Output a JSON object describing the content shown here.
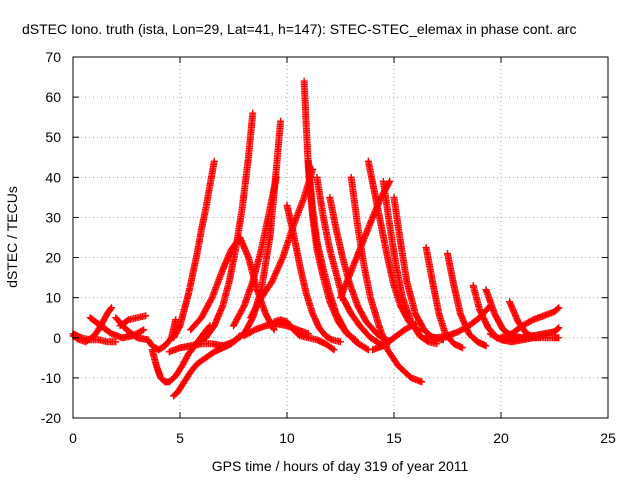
{
  "chart_data": {
    "type": "scatter",
    "title": "dSTEC Iono. truth (ista, Lon=29, Lat=41, h=147): STEC-STEC_elemax in phase cont. arc",
    "xlabel": "GPS time / hours of day 319 of year 2011",
    "ylabel": "dSTEC  / TECUs",
    "xlim": [
      0,
      25
    ],
    "ylim": [
      -20,
      70
    ],
    "xticks": [
      0,
      5,
      10,
      15,
      20,
      25
    ],
    "yticks": [
      -20,
      -10,
      0,
      10,
      20,
      30,
      40,
      50,
      60,
      70
    ],
    "grid": true,
    "marker_color": "#ff0000",
    "marker": "plus",
    "series": [
      {
        "x": [
          0.0,
          0.3,
          0.6,
          1.0,
          1.3,
          1.6,
          1.8
        ],
        "y": [
          0.5,
          -0.5,
          -1.0,
          0.5,
          3.0,
          6.0,
          7.5
        ]
      },
      {
        "x": [
          0.0,
          0.4,
          0.8,
          1.2,
          1.6,
          2.0
        ],
        "y": [
          1.0,
          0.0,
          -0.5,
          -0.5,
          -1.0,
          -1.0
        ]
      },
      {
        "x": [
          0.8,
          1.3,
          1.8,
          2.3,
          2.8,
          3.3
        ],
        "y": [
          5.0,
          3.0,
          1.0,
          0.0,
          0.5,
          2.0
        ]
      },
      {
        "x": [
          2.0,
          2.5,
          3.0,
          3.5,
          3.7,
          4.0,
          4.3,
          4.6,
          4.8
        ],
        "y": [
          5.0,
          2.0,
          0.0,
          -0.5,
          -2.0,
          -3.0,
          -2.0,
          0.0,
          4.5
        ]
      },
      {
        "x": [
          2.2,
          2.6,
          3.0,
          3.4
        ],
        "y": [
          3.0,
          4.5,
          5.0,
          5.5
        ]
      },
      {
        "x": [
          3.7,
          3.9,
          4.1,
          4.3,
          4.5,
          4.8,
          5.1,
          5.4,
          5.7,
          6.1,
          6.4
        ],
        "y": [
          -3.0,
          -7.0,
          -10.0,
          -11.0,
          -11.0,
          -9.5,
          -7.0,
          -4.0,
          -2.0,
          1.0,
          3.0
        ]
      },
      {
        "x": [
          4.7,
          5.0,
          5.2,
          5.4,
          5.6,
          5.8,
          6.0,
          6.2,
          6.4,
          6.6
        ],
        "y": [
          0.0,
          3.0,
          7.0,
          11.0,
          16.0,
          21.0,
          27.0,
          32.0,
          38.0,
          44.0
        ]
      },
      {
        "x": [
          4.7,
          4.9,
          5.2,
          5.5,
          5.8,
          6.2,
          6.6,
          7.0,
          7.4,
          7.8
        ],
        "y": [
          -14.5,
          -13.5,
          -11.0,
          -8.5,
          -6.5,
          -5.0,
          -3.5,
          -2.5,
          -1.5,
          0.5
        ]
      },
      {
        "x": [
          4.5,
          5.0,
          5.5,
          6.0,
          6.5,
          7.0
        ],
        "y": [
          -3.5,
          -2.5,
          -2.0,
          -1.5,
          -1.5,
          -2.0
        ]
      },
      {
        "x": [
          5.8,
          6.2,
          6.6,
          7.0,
          7.3,
          7.6,
          7.9,
          8.2,
          8.4
        ],
        "y": [
          -1.0,
          0.0,
          3.0,
          8.0,
          14.0,
          22.0,
          32.0,
          45.0,
          56.0
        ]
      },
      {
        "x": [
          5.5,
          6.0,
          6.5,
          7.0,
          7.4,
          7.8,
          8.2,
          8.6,
          9.0,
          9.4
        ],
        "y": [
          2.0,
          5.0,
          10.0,
          17.0,
          22.0,
          25.0,
          20.0,
          12.0,
          6.0,
          2.0
        ]
      },
      {
        "x": [
          7.0,
          7.5,
          8.0,
          8.4,
          8.8,
          9.2,
          9.5,
          9.7
        ],
        "y": [
          -2.0,
          -1.0,
          1.0,
          5.0,
          12.0,
          25.0,
          42.0,
          54.0
        ]
      },
      {
        "x": [
          7.5,
          8.0,
          8.4,
          8.8,
          9.2,
          9.5
        ],
        "y": [
          3.0,
          8.0,
          14.0,
          22.0,
          32.0,
          40.0
        ]
      },
      {
        "x": [
          8.3,
          8.8,
          9.3,
          9.8,
          10.3,
          10.8,
          11.2
        ],
        "y": [
          5.0,
          10.0,
          14.0,
          20.0,
          28.0,
          35.0,
          42.0
        ]
      },
      {
        "x": [
          9.4,
          9.7,
          10.0,
          10.3,
          10.6,
          11.0,
          11.4,
          11.8,
          12.2
        ],
        "y": [
          4.0,
          4.5,
          4.0,
          2.0,
          0.5,
          0.0,
          -0.5,
          -1.5,
          -3.0
        ]
      },
      {
        "x": [
          8.0,
          8.5,
          9.0,
          9.5,
          10.0,
          10.5,
          11.0
        ],
        "y": [
          0.5,
          2.0,
          3.0,
          3.5,
          3.0,
          2.0,
          1.0
        ]
      },
      {
        "x": [
          10.0,
          10.3,
          10.6,
          10.9,
          11.2,
          11.5,
          11.8,
          12.1,
          12.5
        ],
        "y": [
          33.0,
          26.0,
          18.0,
          11.0,
          6.0,
          2.5,
          0.5,
          -0.5,
          -1.0
        ]
      },
      {
        "x": [
          10.8,
          11.0,
          11.2,
          11.4,
          11.7,
          12.0,
          12.4,
          12.8,
          13.2
        ],
        "y": [
          64.0,
          42.0,
          30.0,
          22.0,
          15.0,
          9.0,
          4.0,
          1.0,
          -0.5
        ]
      },
      {
        "x": [
          11.0,
          11.2,
          11.4,
          11.7,
          12.0,
          12.3,
          12.7,
          13.2,
          13.8
        ],
        "y": [
          44.0,
          32.0,
          24.0,
          17.0,
          11.0,
          6.0,
          2.0,
          -1.0,
          -3.0
        ]
      },
      {
        "x": [
          11.4,
          11.7,
          12.0,
          12.3,
          12.6,
          13.0,
          13.4,
          13.9,
          14.5
        ],
        "y": [
          40.0,
          30.0,
          22.0,
          16.0,
          10.0,
          6.0,
          3.0,
          0.0,
          -2.0
        ]
      },
      {
        "x": [
          12.0,
          12.3,
          12.6,
          12.9,
          13.3,
          13.7,
          14.2,
          14.8
        ],
        "y": [
          35.0,
          27.0,
          20.0,
          14.0,
          8.0,
          4.0,
          1.0,
          -1.0
        ]
      },
      {
        "x": [
          13.0,
          13.3,
          13.6,
          13.9,
          14.3,
          14.7,
          15.2,
          15.8,
          16.3
        ],
        "y": [
          40.0,
          28.0,
          18.0,
          10.0,
          3.0,
          -3.0,
          -7.0,
          -10.0,
          -11.0
        ]
      },
      {
        "x": [
          13.8,
          14.1,
          14.4,
          14.7,
          15.0,
          15.3,
          15.7,
          16.2
        ],
        "y": [
          44.0,
          36.0,
          28.0,
          20.0,
          13.0,
          8.0,
          4.0,
          1.5
        ]
      },
      {
        "x": [
          12.5,
          12.8,
          13.1,
          13.4,
          13.7,
          14.0,
          14.4,
          14.8
        ],
        "y": [
          10.0,
          14.0,
          18.0,
          22.0,
          26.0,
          30.0,
          35.0,
          39.0
        ]
      },
      {
        "x": [
          14.5,
          14.8,
          15.1,
          15.4,
          15.8,
          16.2,
          16.6,
          17.0
        ],
        "y": [
          39.0,
          28.0,
          18.0,
          10.0,
          4.0,
          0.5,
          -1.0,
          -1.5
        ]
      },
      {
        "x": [
          15.0,
          15.3,
          15.6,
          16.0,
          16.4,
          16.8,
          17.3
        ],
        "y": [
          35.0,
          24.0,
          14.0,
          6.0,
          2.0,
          0.0,
          -0.5
        ]
      },
      {
        "x": [
          14.0,
          14.5,
          15.0,
          15.5,
          16.0
        ],
        "y": [
          -3.0,
          -2.0,
          0.0,
          2.0,
          3.5
        ]
      },
      {
        "x": [
          16.5,
          16.8,
          17.1,
          17.4,
          17.8,
          18.2
        ],
        "y": [
          22.5,
          14.0,
          6.0,
          1.0,
          -1.5,
          -2.5
        ]
      },
      {
        "x": [
          17.5,
          17.8,
          18.1,
          18.5,
          18.9,
          19.3
        ],
        "y": [
          21.0,
          13.0,
          6.0,
          1.0,
          -1.0,
          -2.0
        ]
      },
      {
        "x": [
          16.5,
          17.0,
          17.5,
          18.0,
          18.5,
          19.0,
          19.5
        ],
        "y": [
          0.5,
          0.0,
          0.5,
          1.5,
          3.0,
          5.0,
          8.0
        ]
      },
      {
        "x": [
          18.7,
          19.0,
          19.4,
          19.8,
          20.2,
          20.6
        ],
        "y": [
          13.0,
          7.0,
          2.5,
          0.0,
          -0.5,
          0.0
        ]
      },
      {
        "x": [
          19.3,
          19.7,
          20.1,
          20.5,
          21.0,
          21.5
        ],
        "y": [
          12.0,
          6.0,
          2.0,
          0.5,
          0.0,
          0.5
        ]
      },
      {
        "x": [
          20.4,
          20.8,
          21.2,
          21.6,
          22.0
        ],
        "y": [
          9.0,
          4.0,
          1.0,
          0.0,
          0.5
        ]
      },
      {
        "x": [
          20.0,
          20.5,
          21.0,
          21.5,
          22.0,
          22.5,
          22.7
        ],
        "y": [
          0.0,
          1.0,
          3.0,
          4.5,
          5.5,
          6.5,
          7.5
        ]
      },
      {
        "x": [
          20.5,
          21.0,
          21.5,
          22.0,
          22.5,
          22.7
        ],
        "y": [
          -0.5,
          0.0,
          0.5,
          1.0,
          1.5,
          2.5
        ]
      },
      {
        "x": [
          19.5,
          20.0,
          20.5,
          21.0,
          21.5,
          22.0,
          22.5,
          22.7
        ],
        "y": [
          1.0,
          -0.5,
          -1.0,
          -0.5,
          0.0,
          0.0,
          0.0,
          0.0
        ]
      }
    ]
  }
}
